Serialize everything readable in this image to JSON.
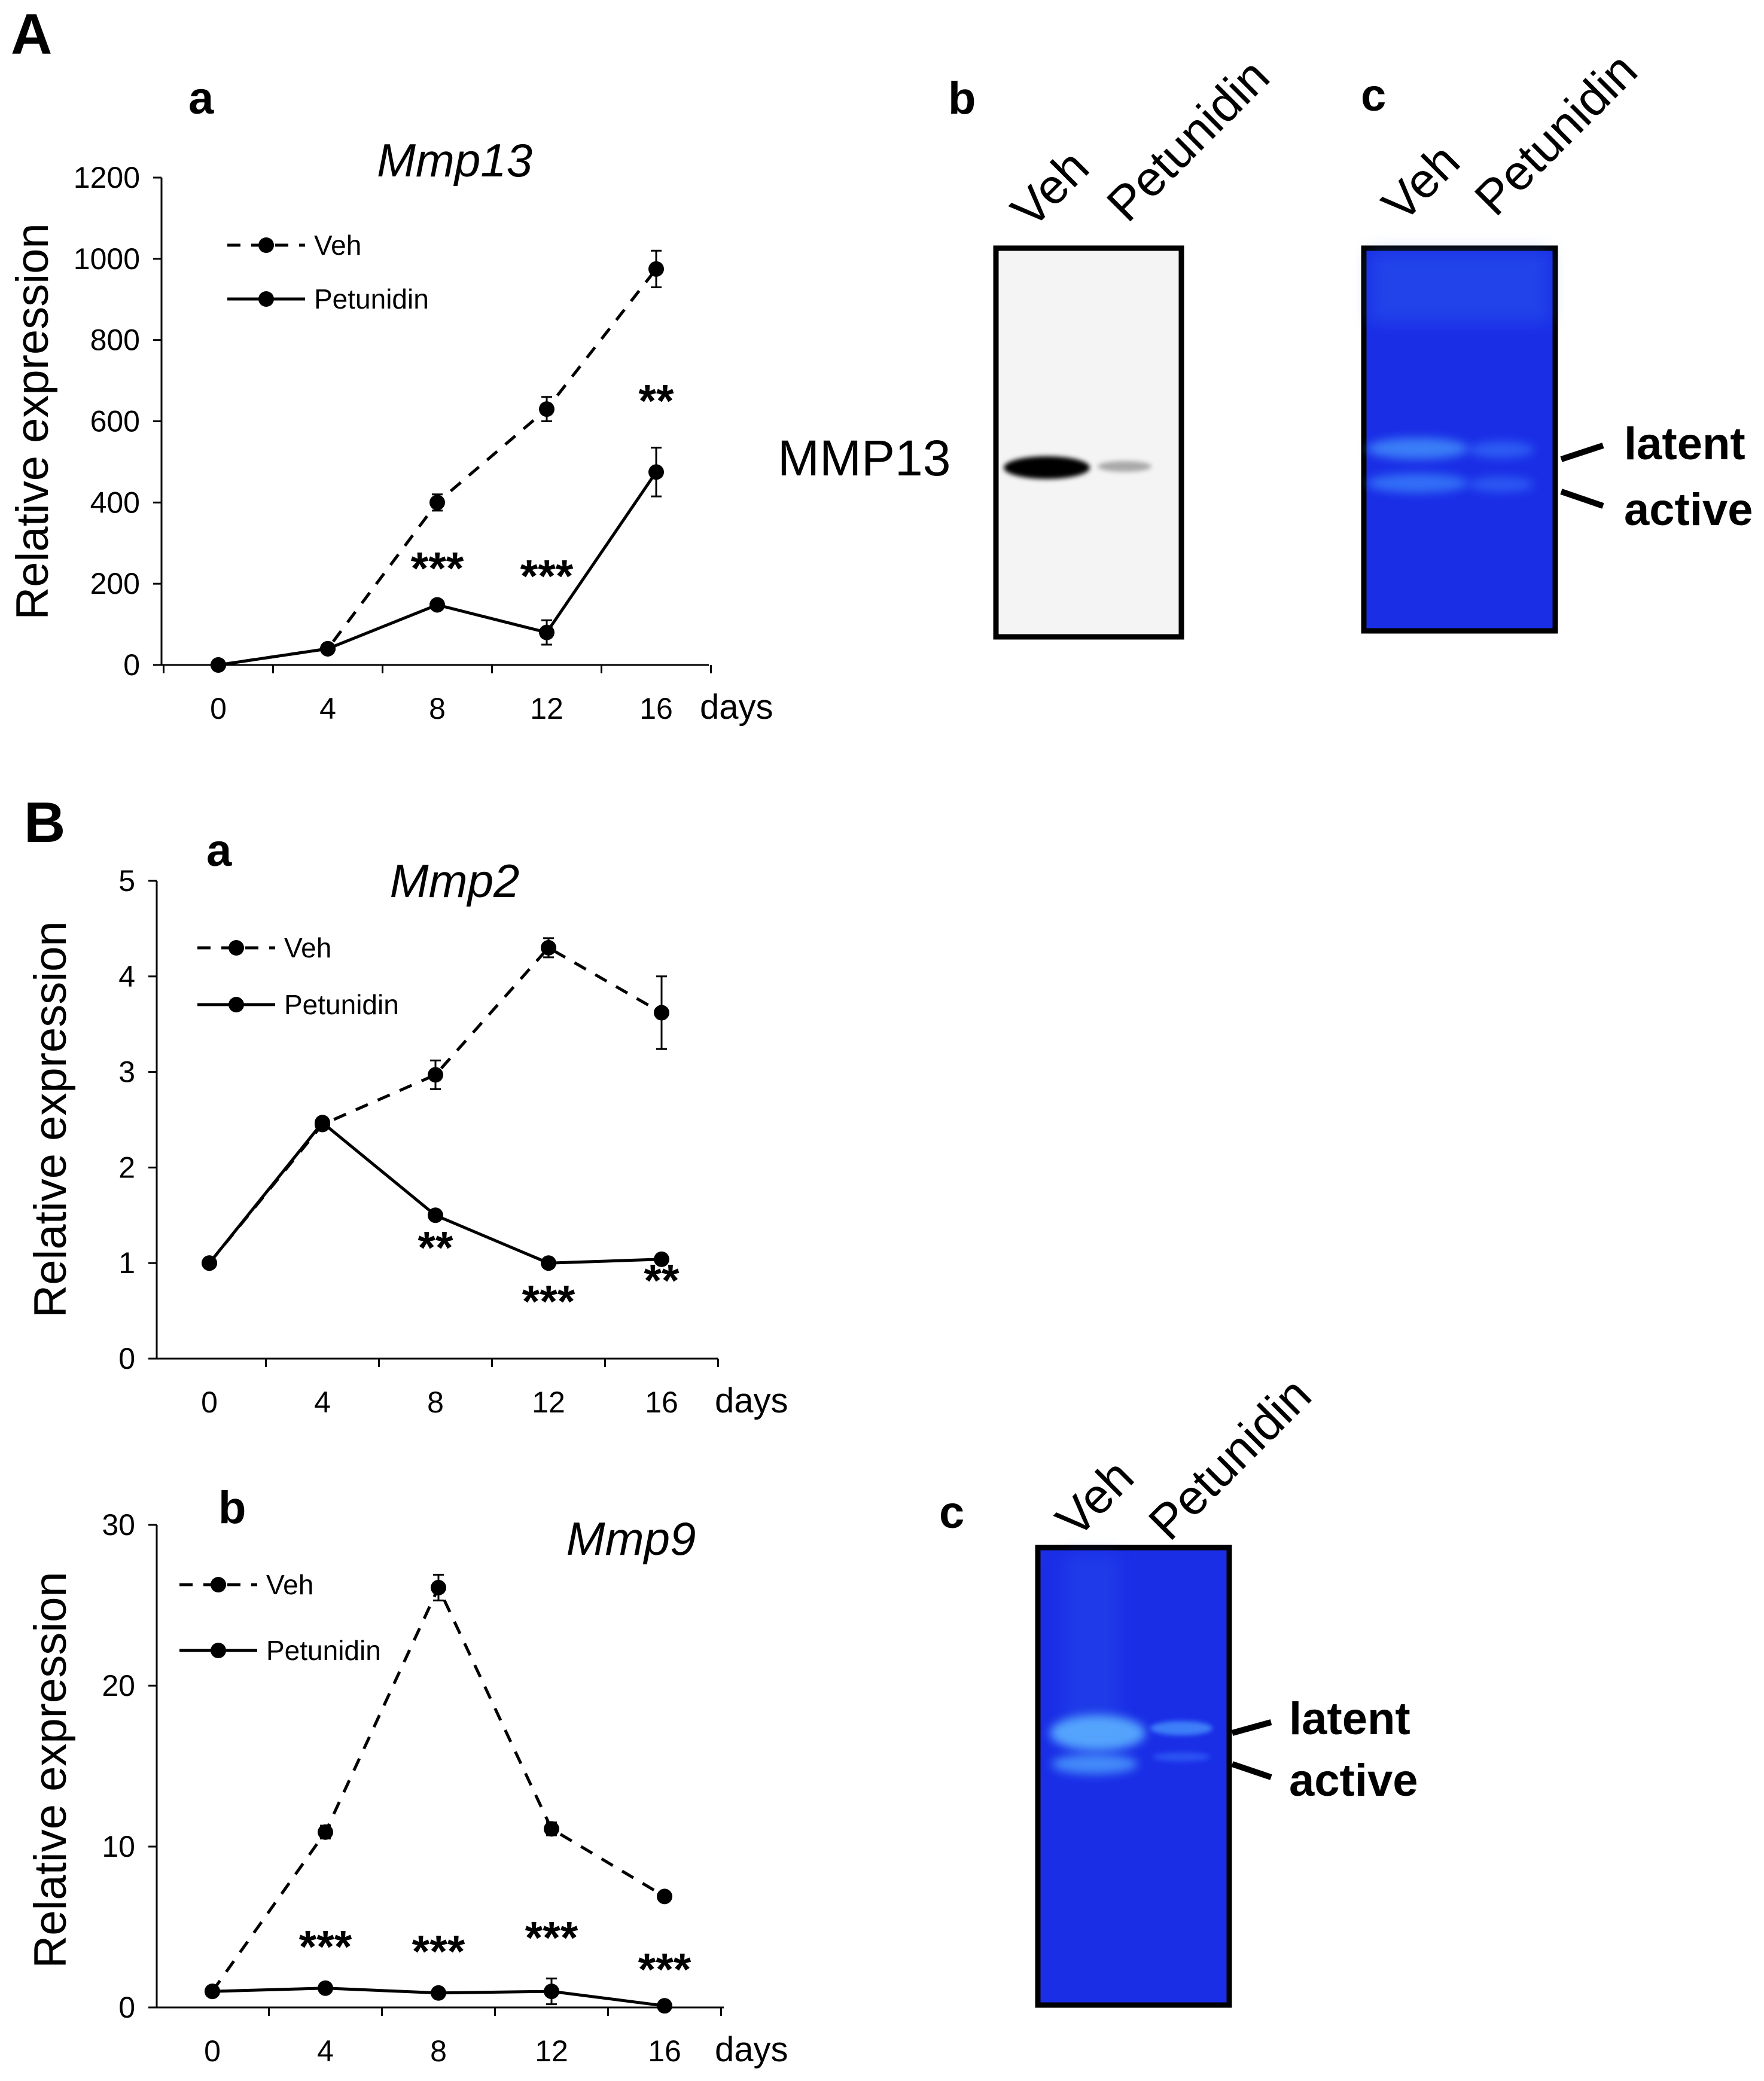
{
  "figure": {
    "panel_A": "A",
    "panel_B": "B"
  },
  "chart_data": [
    {
      "type": "line",
      "panel": "a",
      "title": "Mmp13",
      "ylabel": "Relative expression",
      "xunit": "days",
      "x": [
        0,
        4,
        8,
        12,
        16
      ],
      "xticks": [
        "0",
        "4",
        "8",
        "12",
        "16"
      ],
      "yticks": [
        "0",
        "200",
        "400",
        "600",
        "800",
        "1000",
        "1200"
      ],
      "ylim": [
        0,
        1200
      ],
      "series": [
        {
          "name": "Veh",
          "style": "dashed",
          "values": [
            0,
            40,
            400,
            630,
            975
          ],
          "errors": [
            0,
            5,
            20,
            30,
            45
          ]
        },
        {
          "name": "Petunidin",
          "style": "solid",
          "values": [
            0,
            40,
            148,
            80,
            475
          ],
          "errors": [
            0,
            5,
            10,
            30,
            60
          ]
        }
      ],
      "significance": [
        {
          "x": 8,
          "label": "***"
        },
        {
          "x": 12,
          "label": "***"
        },
        {
          "x": 16,
          "label": "**"
        }
      ]
    },
    {
      "type": "line",
      "panel": "a",
      "title": "Mmp2",
      "ylabel": "Relative expression",
      "xunit": "days",
      "x": [
        0,
        4,
        8,
        12,
        16
      ],
      "xticks": [
        "0",
        "4",
        "8",
        "12",
        "16"
      ],
      "yticks": [
        "0",
        "1",
        "2",
        "3",
        "4",
        "5"
      ],
      "ylim": [
        0,
        5
      ],
      "series": [
        {
          "name": "Veh",
          "style": "dashed",
          "values": [
            1,
            2.45,
            2.97,
            4.3,
            3.62
          ],
          "errors": [
            0,
            0.05,
            0.15,
            0.1,
            0.38
          ]
        },
        {
          "name": "Petunidin",
          "style": "solid",
          "values": [
            1,
            2.47,
            1.5,
            1.0,
            1.04
          ],
          "errors": [
            0,
            0.05,
            0.03,
            0.03,
            0.04
          ]
        }
      ],
      "significance": [
        {
          "x": 8,
          "label": "**"
        },
        {
          "x": 12,
          "label": "***"
        },
        {
          "x": 16,
          "label": "**"
        }
      ]
    },
    {
      "type": "line",
      "panel": "b",
      "title": "Mmp9",
      "ylabel": "Relative expression",
      "xunit": "days",
      "x": [
        0,
        4,
        8,
        12,
        16
      ],
      "xticks": [
        "0",
        "4",
        "8",
        "12",
        "16"
      ],
      "yticks": [
        "0",
        "10",
        "20",
        "30"
      ],
      "ylim": [
        0,
        30
      ],
      "series": [
        {
          "name": "Veh",
          "style": "dashed",
          "values": [
            1,
            10.9,
            26.1,
            11.1,
            6.9
          ],
          "errors": [
            0,
            0.4,
            0.8,
            0.4,
            0.2
          ]
        },
        {
          "name": "Petunidin",
          "style": "solid",
          "values": [
            1,
            1.2,
            0.9,
            1.0,
            0.1
          ],
          "errors": [
            0,
            0.2,
            0.2,
            0.8,
            0.1
          ]
        }
      ],
      "significance": [
        {
          "x": 4,
          "label": "***"
        },
        {
          "x": 8,
          "label": "***"
        },
        {
          "x": 12,
          "label": "***"
        },
        {
          "x": 16,
          "label": "***"
        }
      ]
    }
  ],
  "blots": {
    "western": {
      "panel": "b",
      "lanes": [
        "Veh",
        "Petunidin"
      ],
      "protein": "MMP13"
    },
    "zymo_A": {
      "panel": "c",
      "lanes": [
        "Veh",
        "Petunidin"
      ],
      "bands": [
        "latent",
        "active"
      ],
      "color": "#1a2ee6"
    },
    "zymo_B": {
      "panel": "c",
      "lanes": [
        "Veh",
        "Petunidin"
      ],
      "bands": [
        "latent",
        "active"
      ],
      "color": "#1a2ee6"
    }
  }
}
